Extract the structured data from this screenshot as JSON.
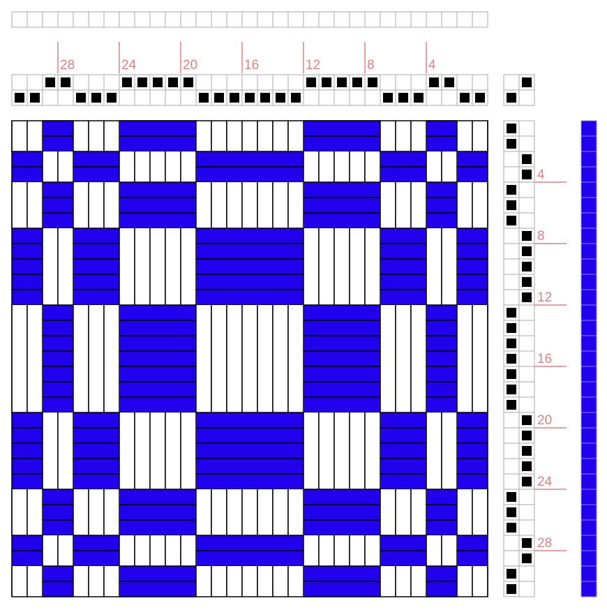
{
  "draft": {
    "threading": [
      2,
      2,
      1,
      1,
      2,
      2,
      2,
      1,
      1,
      1,
      1,
      1,
      2,
      2,
      2,
      2,
      2,
      2,
      2,
      1,
      1,
      1,
      1,
      1,
      2,
      2,
      2,
      1,
      1,
      2,
      2
    ],
    "treadling": [
      1,
      1,
      2,
      2,
      1,
      1,
      1,
      2,
      2,
      2,
      2,
      2,
      1,
      1,
      1,
      1,
      1,
      1,
      1,
      2,
      2,
      2,
      2,
      2,
      1,
      1,
      1,
      2,
      2,
      1,
      1
    ],
    "tieup": [
      [
        0,
        1
      ],
      [
        1,
        0
      ]
    ],
    "threading_marks": [
      28,
      24,
      20,
      16,
      12,
      8,
      4
    ],
    "treadling_marks": [
      4,
      8,
      12,
      16,
      20,
      24,
      28
    ],
    "warp_color": "#ffffff",
    "weft_color": "#2200ee"
  }
}
